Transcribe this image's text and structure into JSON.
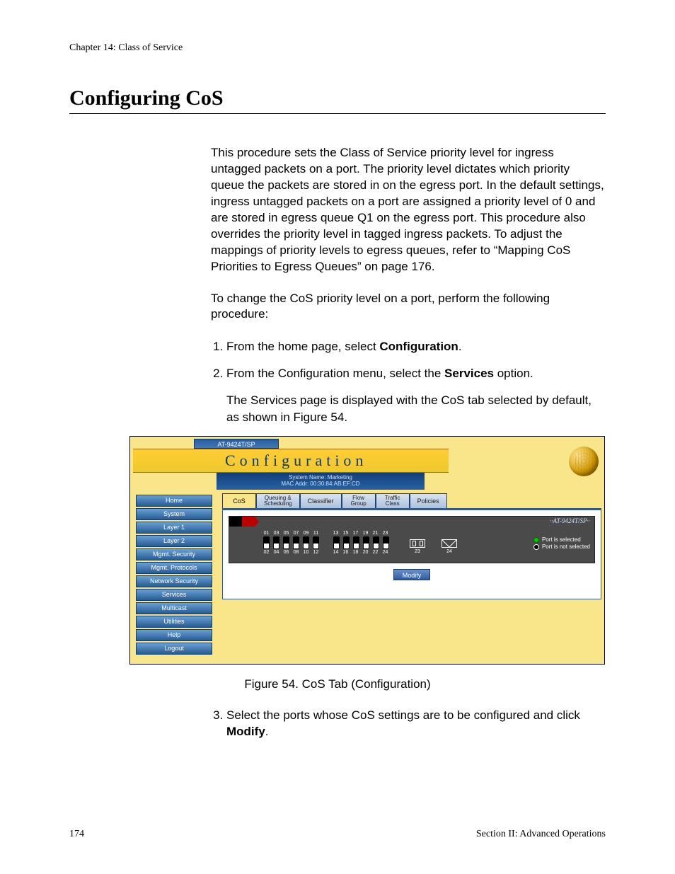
{
  "chapter_line": "Chapter 14: Class of Service",
  "section_title": "Configuring CoS",
  "intro": "This procedure sets the Class of Service priority level for ingress untagged packets on a port. The priority level dictates which priority queue the packets are stored in on the egress port. In the default settings, ingress untagged packets on a port are assigned a priority level of 0 and are stored in egress queue Q1 on the egress port. This procedure also overrides the priority level in tagged ingress packets. To adjust the mappings of priority levels to egress queues, refer to “Mapping CoS Priorities to Egress Queues” on page 176.",
  "lead": "To change the CoS priority level on a port, perform the following procedure:",
  "steps": {
    "s1a": "From the home page, select ",
    "s1b": "Configuration",
    "s1c": ".",
    "s2a": "From the Configuration menu, select the ",
    "s2b": "Services",
    "s2c": " option.",
    "s2d": "The Services page is displayed with the CoS tab selected by default, as shown in Figure 54.",
    "s3a": "Select the ports whose CoS settings are to be configured and click ",
    "s3b": "Modify",
    "s3c": "."
  },
  "figure_caption": "Figure 54. CoS Tab (Configuration)",
  "page_num": "174",
  "footer_right": "Section II: Advanced Operations",
  "shot": {
    "model_tab": "AT-9424T/SP",
    "title": "Configuration",
    "sys1": "System Name: Marketing",
    "sys2": "MAC Addr: 00:30:84:AB:EF:CD",
    "sidebar": {
      "i0": "Home",
      "i1": "System",
      "i2": "Layer 1",
      "i3": "Layer 2",
      "i4": "Mgmt. Security",
      "i5": "Mgmt. Protocols",
      "i6": "Network Security",
      "i7": "Services",
      "i8": "Multicast",
      "i9": "Utilities",
      "i10": "Help",
      "i11": "Logout"
    },
    "tabs": {
      "t0": "CoS",
      "t1a": "Queuing &",
      "t1b": "Scheduling",
      "t2": "Classifier",
      "t3a": "Flow",
      "t3b": "Group",
      "t4a": "Traffic",
      "t4b": "Class",
      "t5": "Policies"
    },
    "device_model": "AT-9424T/SP",
    "ports_top": {
      "p0": "01",
      "p1": "03",
      "p2": "05",
      "p3": "07",
      "p4": "09",
      "p5": "11",
      "p6": "13",
      "p7": "15",
      "p8": "17",
      "p9": "19",
      "p10": "21",
      "p11": "23"
    },
    "ports_bot": {
      "p0": "02",
      "p1": "04",
      "p2": "06",
      "p3": "08",
      "p4": "10",
      "p5": "12",
      "p6": "14",
      "p7": "16",
      "p8": "18",
      "p9": "20",
      "p10": "22",
      "p11": "24"
    },
    "sfp": {
      "n1": "23",
      "n2": "24"
    },
    "legend": {
      "sel": "Port is selected",
      "not": "Port is not selected"
    },
    "modify": "Modify"
  }
}
